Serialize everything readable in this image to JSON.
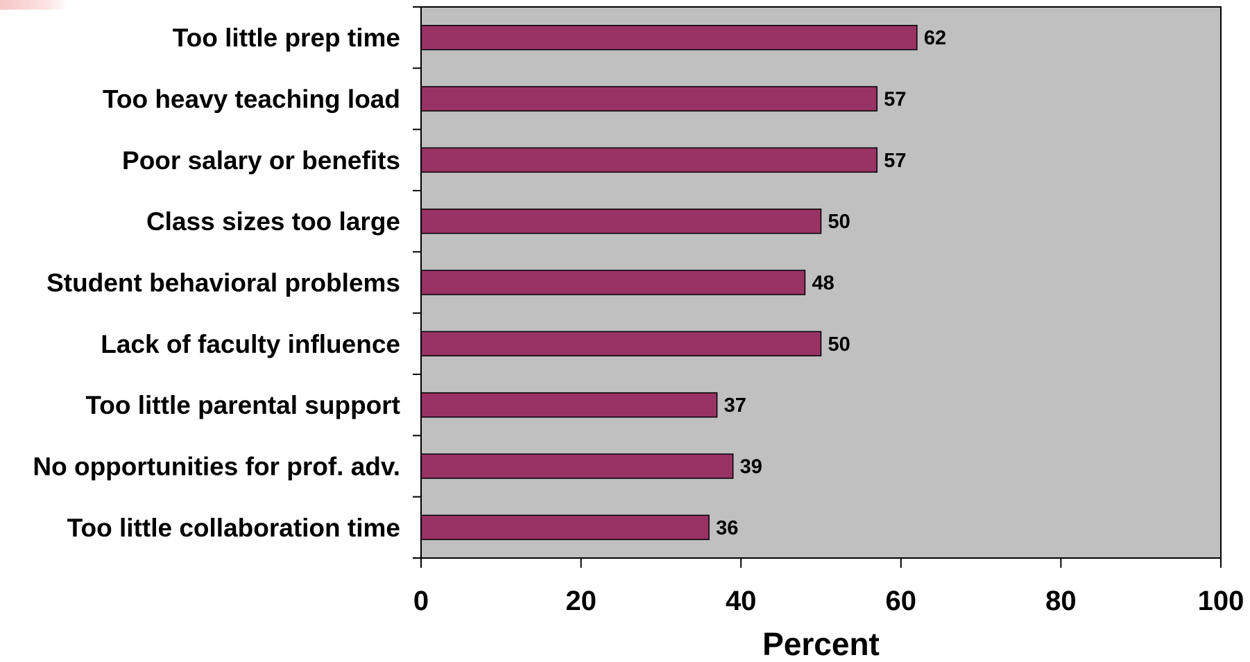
{
  "chart_data": {
    "type": "bar",
    "orientation": "horizontal",
    "categories": [
      "Too little prep time",
      "Too heavy teaching load",
      "Poor salary or benefits",
      "Class sizes too large",
      "Student behavioral problems",
      "Lack of faculty influence",
      "Too little parental support",
      "No opportunities for prof. adv.",
      "Too little collaboration time"
    ],
    "values": [
      62,
      57,
      57,
      50,
      48,
      50,
      37,
      39,
      36
    ],
    "value_labels": [
      "62",
      "57",
      "57",
      "50",
      "48",
      "50",
      "37",
      "39",
      "36"
    ],
    "xlabel": "Percent",
    "ylabel": "",
    "xlim": [
      0,
      100
    ],
    "xticks": [
      0,
      20,
      40,
      60,
      80,
      100
    ],
    "xtick_labels": [
      "0",
      "20",
      "40",
      "60",
      "80",
      "100"
    ],
    "grid": false,
    "legend": "none",
    "colors": {
      "bar": "#993366",
      "plot_background": "#c0c0c0",
      "page_background": "#ffffff",
      "axis": "#000000"
    }
  }
}
